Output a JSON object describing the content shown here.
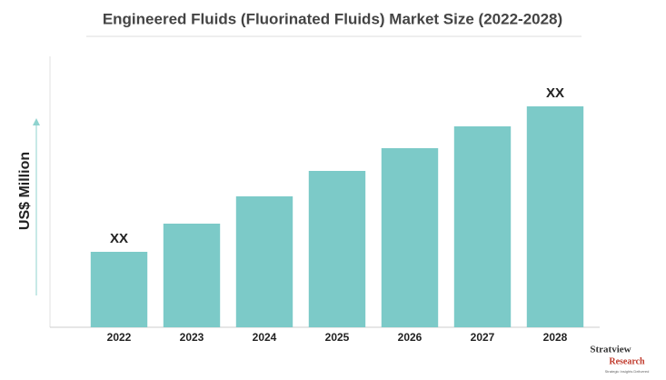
{
  "chart_data": {
    "type": "bar",
    "title": "Engineered Fluids (Fluorinated Fluids) Market Size (2022-2028)",
    "y_label": "US$ Million",
    "categories": [
      "2022",
      "2023",
      "2024",
      "2025",
      "2026",
      "2027",
      "2028"
    ],
    "values": [
      83,
      114,
      144,
      172,
      197,
      221,
      243
    ],
    "value_labels": [
      "XX",
      null,
      null,
      null,
      null,
      null,
      "XX"
    ],
    "color": "#7ccac8",
    "ylim": [
      0,
      260
    ]
  },
  "logo": {
    "name": "Stratview",
    "sub": "Research",
    "tagline": "Strategic Insights Delivered"
  }
}
